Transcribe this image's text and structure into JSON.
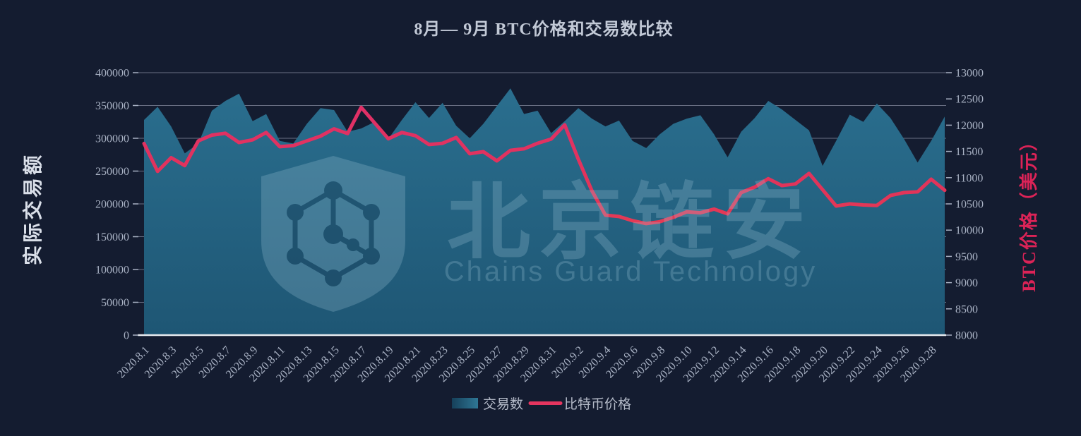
{
  "title": "8月— 9月 BTC价格和交易数比较",
  "watermark": {
    "cn": "北京链安",
    "en": "Chains Guard Technology"
  },
  "left_axis": {
    "title": "实际交易额",
    "ticks": [
      0,
      50000,
      100000,
      150000,
      200000,
      250000,
      300000,
      350000,
      400000
    ]
  },
  "right_axis": {
    "title": "BTC价格（美元）",
    "ticks": [
      8000,
      8500,
      9000,
      9500,
      10000,
      10500,
      11000,
      11500,
      12000,
      12500,
      13000
    ]
  },
  "legend": [
    {
      "label": "交易数",
      "type": "area"
    },
    {
      "label": "比特币价格",
      "type": "line"
    }
  ],
  "colors": {
    "background": "#141c30",
    "area_top": "#2b7090",
    "area_bottom": "#1e5674",
    "line_top": "#df2e6d",
    "line_mid": "#e23459",
    "line_bottom": "#ef5046",
    "grid": "#80869a",
    "baseline": "#e7eaef",
    "tick_text": "#a9b2c4",
    "watermark": "#9cc3d6",
    "watermark_cutout": "#173048"
  },
  "chart_data": {
    "type": "combo",
    "title": "8月— 9月 BTC价格和交易数比较",
    "xlabel": "",
    "left_ylabel": "实际交易额",
    "right_ylabel": "BTC价格（美元）",
    "left_ylim": [
      0,
      400000
    ],
    "right_ylim": [
      8000,
      13000
    ],
    "grid": true,
    "legend_position": "bottom",
    "x_labels": [
      "2020.8.1",
      "2020.8.3",
      "2020.8.5",
      "2020.8.7",
      "2020.8.9",
      "2020.8.11",
      "2020.8.13",
      "2020.8.15",
      "2020.8.17",
      "2020.8.19",
      "2020.8.21",
      "2020.8.23",
      "2020.8.25",
      "2020.8.27",
      "2020.8.29",
      "2020.8.31",
      "2020.9.2",
      "2020.9.4",
      "2020.9.6",
      "2020.9.8",
      "2020.9.10",
      "2020.9.12",
      "2020.9.14",
      "2020.9.16",
      "2020.9.18",
      "2020.9.20",
      "2020.9.22",
      "2020.9.24",
      "2020.9.26",
      "2020.9.28"
    ],
    "dates": [
      "2020.8.1",
      "2020.8.2",
      "2020.8.3",
      "2020.8.4",
      "2020.8.5",
      "2020.8.6",
      "2020.8.7",
      "2020.8.8",
      "2020.8.9",
      "2020.8.10",
      "2020.8.11",
      "2020.8.12",
      "2020.8.13",
      "2020.8.14",
      "2020.8.15",
      "2020.8.16",
      "2020.8.17",
      "2020.8.18",
      "2020.8.19",
      "2020.8.20",
      "2020.8.21",
      "2020.8.22",
      "2020.8.23",
      "2020.8.24",
      "2020.8.25",
      "2020.8.26",
      "2020.8.27",
      "2020.8.28",
      "2020.8.29",
      "2020.8.30",
      "2020.8.31",
      "2020.9.1",
      "2020.9.2",
      "2020.9.3",
      "2020.9.4",
      "2020.9.5",
      "2020.9.6",
      "2020.9.7",
      "2020.9.8",
      "2020.9.9",
      "2020.9.10",
      "2020.9.11",
      "2020.9.12",
      "2020.9.13",
      "2020.9.14",
      "2020.9.15",
      "2020.9.16",
      "2020.9.17",
      "2020.9.18",
      "2020.9.19",
      "2020.9.20",
      "2020.9.21",
      "2020.9.22",
      "2020.9.23",
      "2020.9.24",
      "2020.9.25",
      "2020.9.26",
      "2020.9.27",
      "2020.9.28",
      "2020.9.29"
    ],
    "series": [
      {
        "name": "交易数",
        "type": "area",
        "axis": "left",
        "color": "#24607e",
        "values": [
          328000,
          348000,
          318000,
          277000,
          292000,
          342000,
          357000,
          368000,
          326000,
          337000,
          296000,
          292000,
          322000,
          346000,
          343000,
          310000,
          315000,
          325000,
          299000,
          328000,
          355000,
          331000,
          354000,
          319000,
          300000,
          322000,
          349000,
          376000,
          337000,
          342000,
          308000,
          326000,
          346000,
          330000,
          318000,
          327000,
          296000,
          285000,
          306000,
          322000,
          330000,
          335000,
          306000,
          271000,
          310000,
          331000,
          357000,
          344000,
          328000,
          312000,
          258000,
          296000,
          336000,
          325000,
          353000,
          331000,
          299000,
          263000,
          296000,
          333000
        ]
      },
      {
        "name": "比特币价格",
        "type": "line",
        "axis": "right",
        "color": "#e5355f",
        "values": [
          11650,
          11120,
          11380,
          11230,
          11700,
          11810,
          11845,
          11670,
          11720,
          11860,
          11590,
          11610,
          11700,
          11790,
          11930,
          11840,
          12340,
          12040,
          11740,
          11860,
          11800,
          11630,
          11655,
          11765,
          11455,
          11495,
          11320,
          11520,
          11550,
          11655,
          11735,
          12005,
          11350,
          10750,
          10285,
          10260,
          10180,
          10125,
          10160,
          10245,
          10350,
          10330,
          10400,
          10310,
          10715,
          10820,
          10980,
          10850,
          10880,
          11080,
          10770,
          10460,
          10500,
          10480,
          10470,
          10660,
          10715,
          10730,
          10970,
          10760
        ]
      }
    ]
  }
}
